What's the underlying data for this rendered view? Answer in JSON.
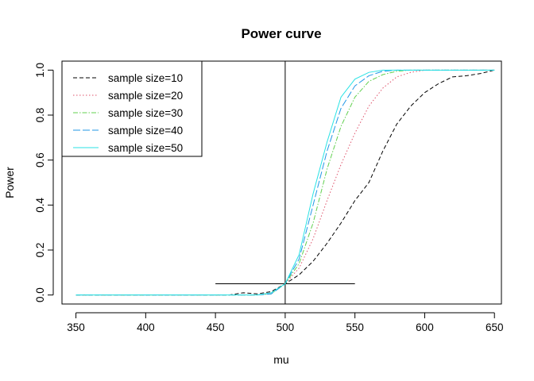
{
  "chart_data": {
    "type": "line",
    "title": "Power curve",
    "xlabel": "mu",
    "ylabel": "Power",
    "xlim": [
      340,
      655
    ],
    "ylim": [
      -0.04,
      1.04
    ],
    "x_ticks": [
      350,
      400,
      450,
      500,
      550,
      600,
      650
    ],
    "y_ticks": [
      0.0,
      0.2,
      0.4,
      0.6,
      0.8,
      1.0
    ],
    "x_tick_labels": [
      "350",
      "400",
      "450",
      "500",
      "550",
      "600",
      "650"
    ],
    "y_tick_labels": [
      "0.0",
      "0.2",
      "0.4",
      "0.6",
      "0.8",
      "1.0"
    ],
    "legend_position": "top-left",
    "reference_lines": {
      "vertical_x": 500,
      "horizontal": {
        "y": 0.05,
        "x_from": 450,
        "x_to": 550
      }
    },
    "x": [
      350,
      360,
      370,
      380,
      390,
      400,
      410,
      420,
      430,
      440,
      450,
      460,
      470,
      480,
      490,
      500,
      510,
      520,
      530,
      540,
      550,
      560,
      570,
      580,
      590,
      600,
      610,
      620,
      630,
      640,
      650
    ],
    "series": [
      {
        "name": "sample size=10",
        "color": "#000000",
        "dash": "5,3",
        "values": [
          0,
          0,
          0,
          0,
          0,
          0,
          0,
          0,
          0,
          0,
          0,
          0,
          0.01,
          0.005,
          0.015,
          0.05,
          0.09,
          0.15,
          0.23,
          0.32,
          0.42,
          0.5,
          0.64,
          0.76,
          0.84,
          0.9,
          0.94,
          0.97,
          0.975,
          0.985,
          1.0
        ]
      },
      {
        "name": "sample size=20",
        "color": "#DF536B",
        "dash": "1.5,2.5",
        "values": [
          0,
          0,
          0,
          0,
          0,
          0,
          0,
          0,
          0,
          0,
          0,
          0,
          0,
          0,
          0.01,
          0.05,
          0.12,
          0.25,
          0.42,
          0.58,
          0.72,
          0.84,
          0.92,
          0.97,
          0.99,
          1.0,
          1.0,
          1.0,
          1.0,
          1.0,
          1.0
        ]
      },
      {
        "name": "sample size=30",
        "color": "#61D04F",
        "dash": "6,2,1.5,2",
        "values": [
          0,
          0,
          0,
          0,
          0,
          0,
          0,
          0,
          0,
          0,
          0,
          0,
          0,
          0,
          0.005,
          0.05,
          0.14,
          0.32,
          0.56,
          0.75,
          0.88,
          0.95,
          0.98,
          0.995,
          1.0,
          1.0,
          1.0,
          1.0,
          1.0,
          1.0,
          1.0
        ]
      },
      {
        "name": "sample size=40",
        "color": "#2297E6",
        "dash": "9,3",
        "values": [
          0,
          0,
          0,
          0,
          0,
          0,
          0,
          0,
          0,
          0,
          0,
          0,
          0,
          0,
          0.005,
          0.05,
          0.16,
          0.4,
          0.64,
          0.83,
          0.93,
          0.975,
          0.995,
          1.0,
          1.0,
          1.0,
          1.0,
          1.0,
          1.0,
          1.0,
          1.0
        ]
      },
      {
        "name": "sample size=50",
        "color": "#28E2E5",
        "dash": "",
        "values": [
          0,
          0,
          0,
          0,
          0,
          0,
          0,
          0,
          0,
          0,
          0,
          0,
          0,
          0,
          0.01,
          0.05,
          0.18,
          0.45,
          0.68,
          0.88,
          0.96,
          0.99,
          1.0,
          1.0,
          1.0,
          1.0,
          1.0,
          1.0,
          1.0,
          1.0,
          1.0
        ]
      }
    ]
  }
}
